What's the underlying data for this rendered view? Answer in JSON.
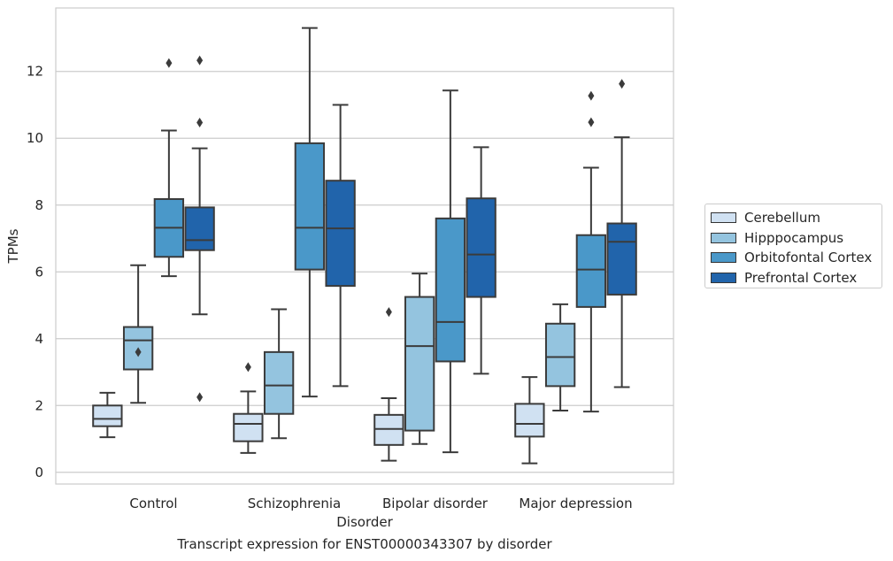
{
  "caption": "Transcript expression for ENST00000343307 by disorder",
  "chart_data": {
    "type": "box",
    "xlabel": "Disorder",
    "ylabel": "TPMs",
    "ylim": [
      -0.35,
      13.9
    ],
    "yticks": [
      0,
      2,
      4,
      6,
      8,
      10,
      12
    ],
    "grid": "horizontal",
    "legend_position": "right",
    "categories": [
      "Control",
      "Schizophrenia",
      "Bipolar disorder",
      "Major depression"
    ],
    "series": [
      {
        "name": "Cerebellum",
        "color": "#d0e1f2",
        "boxes": [
          {
            "whisker_low": 1.05,
            "q1": 1.38,
            "median": 1.6,
            "q3": 2.0,
            "whisker_high": 2.38,
            "outliers": []
          },
          {
            "whisker_low": 0.58,
            "q1": 0.93,
            "median": 1.45,
            "q3": 1.75,
            "whisker_high": 2.42,
            "outliers": [
              3.15
            ]
          },
          {
            "whisker_low": 0.35,
            "q1": 0.82,
            "median": 1.3,
            "q3": 1.72,
            "whisker_high": 2.22,
            "outliers": [
              4.8
            ]
          },
          {
            "whisker_low": 0.27,
            "q1": 1.07,
            "median": 1.45,
            "q3": 2.05,
            "whisker_high": 2.85,
            "outliers": []
          }
        ]
      },
      {
        "name": "Hipppocampus",
        "color": "#94c4df",
        "boxes": [
          {
            "whisker_low": 2.08,
            "q1": 3.08,
            "median": 3.95,
            "q3": 4.35,
            "whisker_high": 6.2,
            "outliers": [
              3.6
            ]
          },
          {
            "whisker_low": 1.02,
            "q1": 1.75,
            "median": 2.6,
            "q3": 3.6,
            "whisker_high": 4.88,
            "outliers": []
          },
          {
            "whisker_low": 0.85,
            "q1": 1.25,
            "median": 3.78,
            "q3": 5.25,
            "whisker_high": 5.95,
            "outliers": []
          },
          {
            "whisker_low": 1.85,
            "q1": 2.58,
            "median": 3.45,
            "q3": 4.45,
            "whisker_high": 5.03,
            "outliers": []
          }
        ]
      },
      {
        "name": "Orbitofontal Cortex",
        "color": "#4a98c9",
        "boxes": [
          {
            "whisker_low": 5.87,
            "q1": 6.45,
            "median": 7.32,
            "q3": 8.18,
            "whisker_high": 10.23,
            "outliers": [
              12.25
            ]
          },
          {
            "whisker_low": 2.27,
            "q1": 6.07,
            "median": 7.32,
            "q3": 9.85,
            "whisker_high": 13.3,
            "outliers": []
          },
          {
            "whisker_low": 0.6,
            "q1": 3.32,
            "median": 4.5,
            "q3": 7.6,
            "whisker_high": 11.43,
            "outliers": []
          },
          {
            "whisker_low": 1.82,
            "q1": 4.95,
            "median": 6.07,
            "q3": 7.1,
            "whisker_high": 9.12,
            "outliers": [
              10.48,
              11.27
            ]
          }
        ]
      },
      {
        "name": "Prefrontal Cortex",
        "color": "#2164ab",
        "boxes": [
          {
            "whisker_low": 4.73,
            "q1": 6.65,
            "median": 6.95,
            "q3": 7.93,
            "whisker_high": 9.7,
            "outliers": [
              2.25,
              10.47,
              12.33
            ]
          },
          {
            "whisker_low": 2.58,
            "q1": 5.58,
            "median": 7.3,
            "q3": 8.73,
            "whisker_high": 11.0,
            "outliers": []
          },
          {
            "whisker_low": 2.95,
            "q1": 5.25,
            "median": 6.52,
            "q3": 8.2,
            "whisker_high": 9.73,
            "outliers": []
          },
          {
            "whisker_low": 2.55,
            "q1": 5.32,
            "median": 6.9,
            "q3": 7.45,
            "whisker_high": 10.03,
            "outliers": [
              11.63
            ]
          }
        ]
      }
    ]
  }
}
